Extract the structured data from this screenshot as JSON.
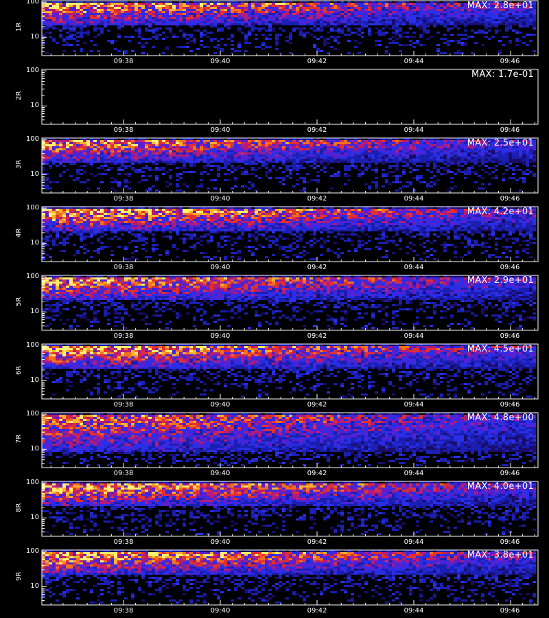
{
  "colors": {
    "background": "#000000",
    "axis": "#ffffff",
    "text": "#ffffff"
  },
  "colormap": [
    "#000000",
    "#1a0c6a",
    "#1a1fb2",
    "#2a2ee6",
    "#5a1fd0",
    "#b21c7a",
    "#e23030",
    "#f27020",
    "#fbb030",
    "#fff070"
  ],
  "footer_text": "",
  "chart_data": [
    {
      "type": "heatmap",
      "ylabel": "1R",
      "max_label": "MAX: 2.8e+01",
      "max": 28,
      "intensity": 0.9,
      "band": [
        24,
        100
      ],
      "yscale": "log",
      "ylim": [
        3,
        110
      ],
      "x_ticks": [
        "09:38",
        "09:40",
        "09:42",
        "09:44",
        "09:46"
      ],
      "y_ticks": [
        "100",
        "10"
      ],
      "grid": false
    },
    {
      "type": "heatmap",
      "ylabel": "2R",
      "max_label": "MAX: 1.7e-01",
      "max": 0.17,
      "intensity": 0.0,
      "band": [
        24,
        100
      ],
      "yscale": "log",
      "ylim": [
        3,
        110
      ],
      "x_ticks": [
        "09:38",
        "09:40",
        "09:42",
        "09:44",
        "09:46"
      ],
      "y_ticks": [
        "100",
        "10"
      ],
      "grid": false
    },
    {
      "type": "heatmap",
      "ylabel": "3R",
      "max_label": "MAX: 2.5e+01",
      "max": 25,
      "intensity": 0.85,
      "band": [
        24,
        100
      ],
      "yscale": "log",
      "ylim": [
        3,
        110
      ],
      "x_ticks": [
        "09:38",
        "09:40",
        "09:42",
        "09:44",
        "09:46"
      ],
      "y_ticks": [
        "100",
        "10"
      ],
      "grid": false
    },
    {
      "type": "heatmap",
      "ylabel": "4R",
      "max_label": "MAX: 4.2e+01",
      "max": 42,
      "intensity": 0.95,
      "band": [
        24,
        100
      ],
      "yscale": "log",
      "ylim": [
        3,
        110
      ],
      "x_ticks": [
        "09:38",
        "09:40",
        "09:42",
        "09:44",
        "09:46"
      ],
      "y_ticks": [
        "100",
        "10"
      ],
      "grid": false
    },
    {
      "type": "heatmap",
      "ylabel": "5R",
      "max_label": "MAX: 2.9e+01",
      "max": 29,
      "intensity": 0.9,
      "band": [
        24,
        100
      ],
      "yscale": "log",
      "ylim": [
        3,
        110
      ],
      "x_ticks": [
        "09:38",
        "09:40",
        "09:42",
        "09:44",
        "09:46"
      ],
      "y_ticks": [
        "100",
        "10"
      ],
      "grid": false
    },
    {
      "type": "heatmap",
      "ylabel": "6R",
      "max_label": "MAX: 4.5e+01",
      "max": 45,
      "intensity": 0.95,
      "band": [
        24,
        100
      ],
      "yscale": "log",
      "ylim": [
        3,
        110
      ],
      "x_ticks": [
        "09:38",
        "09:40",
        "09:42",
        "09:44",
        "09:46"
      ],
      "y_ticks": [
        "100",
        "10"
      ],
      "grid": false
    },
    {
      "type": "heatmap",
      "ylabel": "7R",
      "max_label": "MAX: 4.8e+00",
      "max": 4.8,
      "intensity": 0.8,
      "band": [
        9,
        100
      ],
      "yscale": "log",
      "ylim": [
        3,
        110
      ],
      "x_ticks": [
        "09:38",
        "09:40",
        "09:42",
        "09:44",
        "09:46"
      ],
      "y_ticks": [
        "100",
        "10"
      ],
      "grid": false
    },
    {
      "type": "heatmap",
      "ylabel": "8R",
      "max_label": "MAX: 4.0e+01",
      "max": 40,
      "intensity": 0.95,
      "band": [
        24,
        100
      ],
      "yscale": "log",
      "ylim": [
        3,
        110
      ],
      "x_ticks": [
        "09:38",
        "09:40",
        "09:42",
        "09:44",
        "09:46"
      ],
      "y_ticks": [
        "100",
        "10"
      ],
      "grid": false
    },
    {
      "type": "heatmap",
      "ylabel": "9R",
      "max_label": "MAX: 3.8e+01",
      "max": 38,
      "intensity": 0.95,
      "band": [
        24,
        100
      ],
      "yscale": "log",
      "ylim": [
        3,
        110
      ],
      "x_ticks": [
        "09:38",
        "09:40",
        "09:42",
        "09:44",
        "09:46"
      ],
      "y_ticks": [
        "100",
        "10"
      ],
      "grid": false
    }
  ]
}
